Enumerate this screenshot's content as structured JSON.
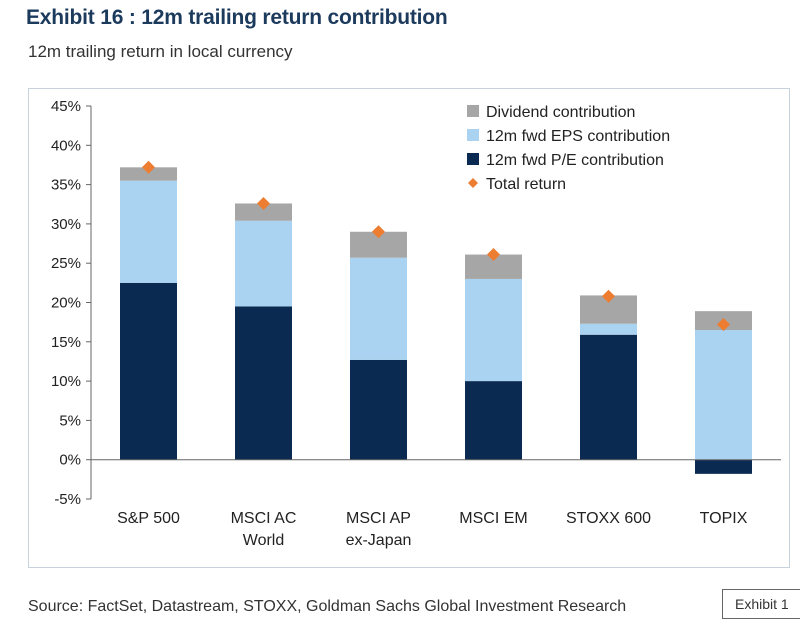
{
  "header": {
    "title": "Exhibit 16 : 12m trailing return contribution",
    "subtitle": "12m trailing return in local currency"
  },
  "footer": {
    "source": "Source: FactSet, Datastream, STOXX, Goldman Sachs Global Investment Research",
    "badge": "Exhibit 1"
  },
  "chart_data": {
    "type": "bar",
    "stacked": true,
    "categories": [
      [
        "S&P 500"
      ],
      [
        "MSCI AC",
        "World"
      ],
      [
        "MSCI AP",
        "ex-Japan"
      ],
      [
        "MSCI EM"
      ],
      [
        "STOXX 600"
      ],
      [
        "TOPIX"
      ]
    ],
    "series": [
      {
        "name": "12m fwd P/E contribution",
        "color": "#0b2a52",
        "values": [
          22.5,
          19.5,
          12.7,
          10.0,
          15.9,
          -1.8
        ]
      },
      {
        "name": "12m fwd EPS contribution",
        "color": "#a9d3f0",
        "values": [
          13.0,
          10.9,
          13.0,
          13.0,
          1.4,
          16.5
        ]
      },
      {
        "name": "Dividend contribution",
        "color": "#a6a6a6",
        "values": [
          1.7,
          2.2,
          3.3,
          3.1,
          3.6,
          2.4
        ]
      }
    ],
    "total_return": {
      "name": "Total return",
      "color": "#ed7d31",
      "values": [
        37.2,
        32.6,
        29.0,
        26.1,
        20.8,
        17.2
      ]
    },
    "legend_order": [
      "Dividend contribution",
      "12m fwd EPS contribution",
      "12m fwd P/E contribution",
      "Total return"
    ],
    "legend_position": "top-right",
    "ylim": [
      -5,
      45
    ],
    "yticks": [
      -5,
      0,
      5,
      10,
      15,
      20,
      25,
      30,
      35,
      40,
      45
    ],
    "ytick_format": "percent",
    "grid": false,
    "xlabel": "",
    "ylabel": ""
  }
}
